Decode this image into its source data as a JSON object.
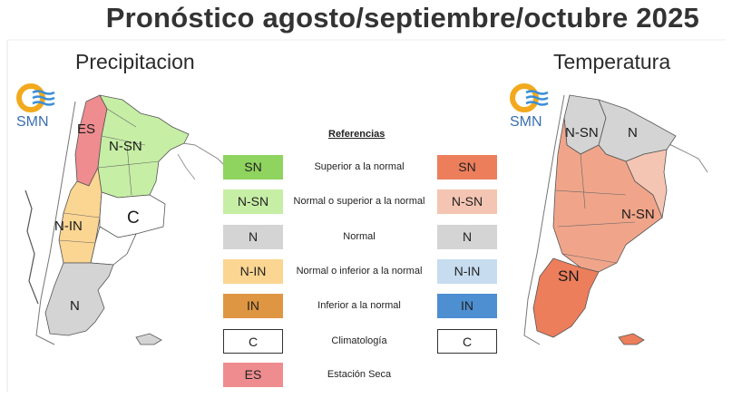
{
  "title": "Pronóstico agosto/septiembre/octubre 2025",
  "precipitation": {
    "subtitle": "Precipitacion",
    "logo_text": "SMN",
    "region_labels": [
      "ES",
      "N-SN",
      "N-IN",
      "C",
      "N"
    ]
  },
  "temperature": {
    "subtitle": "Temperatura",
    "logo_text": "SMN",
    "region_labels": [
      "N-SN",
      "N",
      "N-SN",
      "SN"
    ]
  },
  "legend": {
    "title": "Referencias",
    "rows": [
      {
        "precip_code": "SN",
        "precip_color": "#ffffff",
        "label": "Superior a la normal",
        "temp_code": "SN",
        "temp_color": "#ec7e5c"
      },
      {
        "precip_code": "N-SN",
        "precip_color": "#c6eea5",
        "label": "Normal o superior a la normal",
        "temp_code": "N-SN",
        "temp_color": "#f4c5b2"
      },
      {
        "precip_code": "N",
        "precip_color": "#d4d4d4",
        "label": "Normal",
        "temp_code": "N",
        "temp_color": "#d4d4d4"
      },
      {
        "precip_code": "N-IN",
        "precip_color": "#fbd592",
        "label": "Normal o inferior a la normal",
        "temp_code": "N-IN",
        "temp_color": "#c7dcef"
      },
      {
        "precip_code": "IN",
        "precip_color": "#df9642",
        "label": "Inferior a la normal",
        "temp_code": "IN",
        "temp_color": "#4d8fd1"
      },
      {
        "precip_code": "C",
        "precip_color": "#ffffff",
        "label": "Climatología",
        "temp_code": "C",
        "temp_color": "#ffffff"
      },
      {
        "precip_code": "ES",
        "precip_color": "#ee8c8f",
        "label": "Estación Seca",
        "temp_code": "",
        "temp_color": ""
      }
    ]
  },
  "colors": {
    "sn_green": "#8fd45e",
    "title_text": "#333333"
  }
}
